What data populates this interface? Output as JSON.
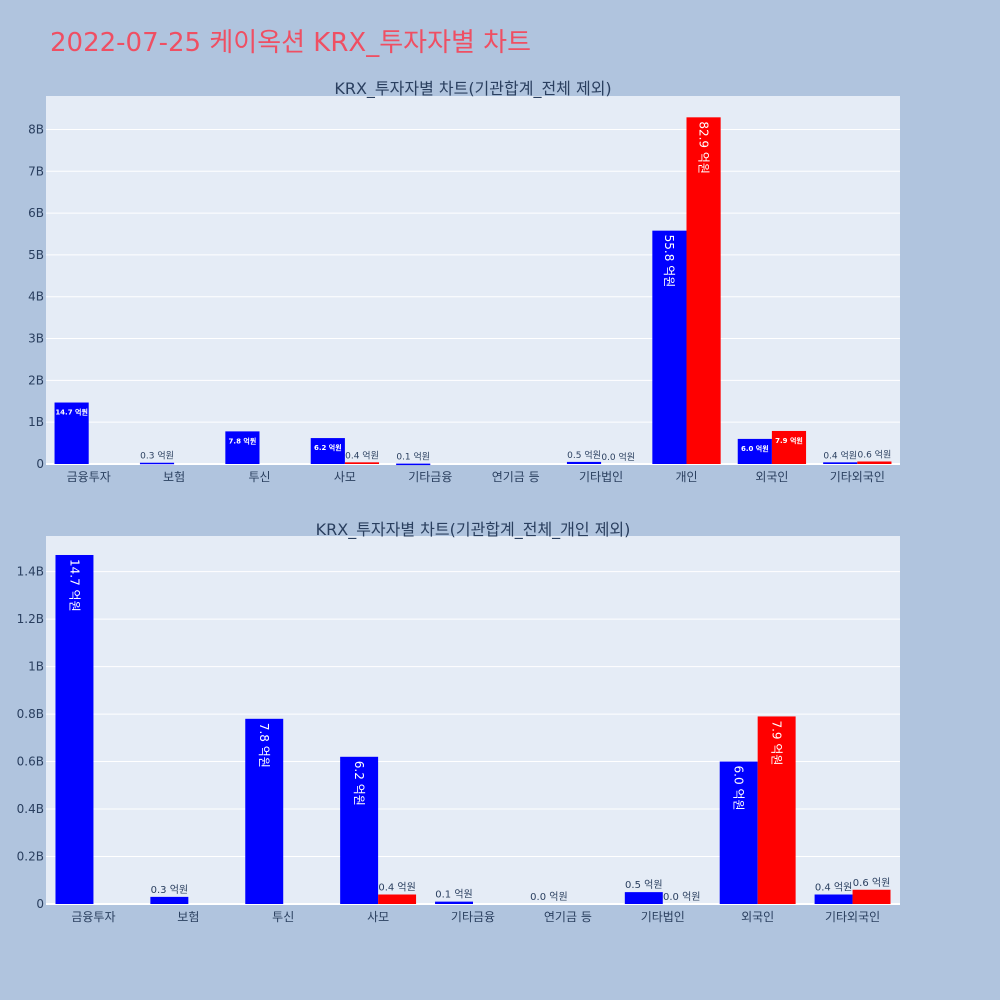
{
  "page": {
    "title": "2022-07-25 케이옥션 KRX_투자자별 차트"
  },
  "colors": {
    "buy": "#0000ff",
    "sell": "#ff0000",
    "plot_bg": "#e5ecf6",
    "page_bg": "#b0c4de",
    "title": "#ef4f63"
  },
  "chart_data": [
    {
      "type": "bar",
      "title": "KRX_투자자별 차트(기관합계_전체 제외)",
      "categories": [
        "금융투자",
        "보험",
        "투신",
        "사모",
        "기타금융",
        "연기금 등",
        "기타법인",
        "개인",
        "외국인",
        "기타외국인"
      ],
      "series": [
        {
          "color": "#0000ff",
          "values": [
            1470000000,
            30000000,
            780000000,
            620000000,
            10000000,
            0,
            50000000,
            5580000000,
            600000000,
            40000000
          ],
          "labels": [
            "14.7 억원",
            "0.3 억원",
            "7.8 억원",
            "6.2 억원",
            "0.1 억원",
            "",
            "0.5 억원",
            "55.8 억원",
            "6.0 억원",
            "0.4 억원"
          ]
        },
        {
          "color": "#ff0000",
          "values": [
            0,
            0,
            0,
            40000000,
            0,
            0,
            0,
            8290000000,
            790000000,
            60000000
          ],
          "labels": [
            "",
            "",
            "",
            "0.4 억원",
            "",
            "",
            "0.0 억원",
            "82.9 억원",
            "7.9 억원",
            "0.6 억원"
          ]
        }
      ],
      "ylim": [
        0,
        8800000000
      ],
      "yticks": [
        0,
        1000000000,
        2000000000,
        3000000000,
        4000000000,
        5000000000,
        6000000000,
        7000000000,
        8000000000
      ],
      "ytick_labels": [
        "0",
        "1B",
        "2B",
        "3B",
        "4B",
        "5B",
        "6B",
        "7B",
        "8B"
      ],
      "grid": true
    },
    {
      "type": "bar",
      "title": "KRX_투자자별 차트(기관합계_전체_개인 제외)",
      "categories": [
        "금융투자",
        "보험",
        "투신",
        "사모",
        "기타금융",
        "연기금 등",
        "기타법인",
        "외국인",
        "기타외국인"
      ],
      "series": [
        {
          "color": "#0000ff",
          "values": [
            1470000000,
            30000000,
            780000000,
            620000000,
            10000000,
            0,
            50000000,
            600000000,
            40000000
          ],
          "labels": [
            "14.7 억원",
            "0.3 억원",
            "7.8 억원",
            "6.2 억원",
            "0.1 억원",
            "0.0 억원",
            "0.5 억원",
            "6.0 억원",
            "0.4 억원"
          ]
        },
        {
          "color": "#ff0000",
          "values": [
            0,
            0,
            0,
            40000000,
            0,
            0,
            0,
            790000000,
            60000000
          ],
          "labels": [
            "",
            "",
            "",
            "0.4 억원",
            "",
            "",
            "0.0 억원",
            "7.9 억원",
            "0.6 억원"
          ]
        }
      ],
      "ylim": [
        0,
        1550000000
      ],
      "yticks": [
        0,
        200000000,
        400000000,
        600000000,
        800000000,
        1000000000,
        1200000000,
        1400000000
      ],
      "ytick_labels": [
        "0",
        "0.2B",
        "0.4B",
        "0.6B",
        "0.8B",
        "1B",
        "1.2B",
        "1.4B"
      ],
      "grid": true
    }
  ]
}
